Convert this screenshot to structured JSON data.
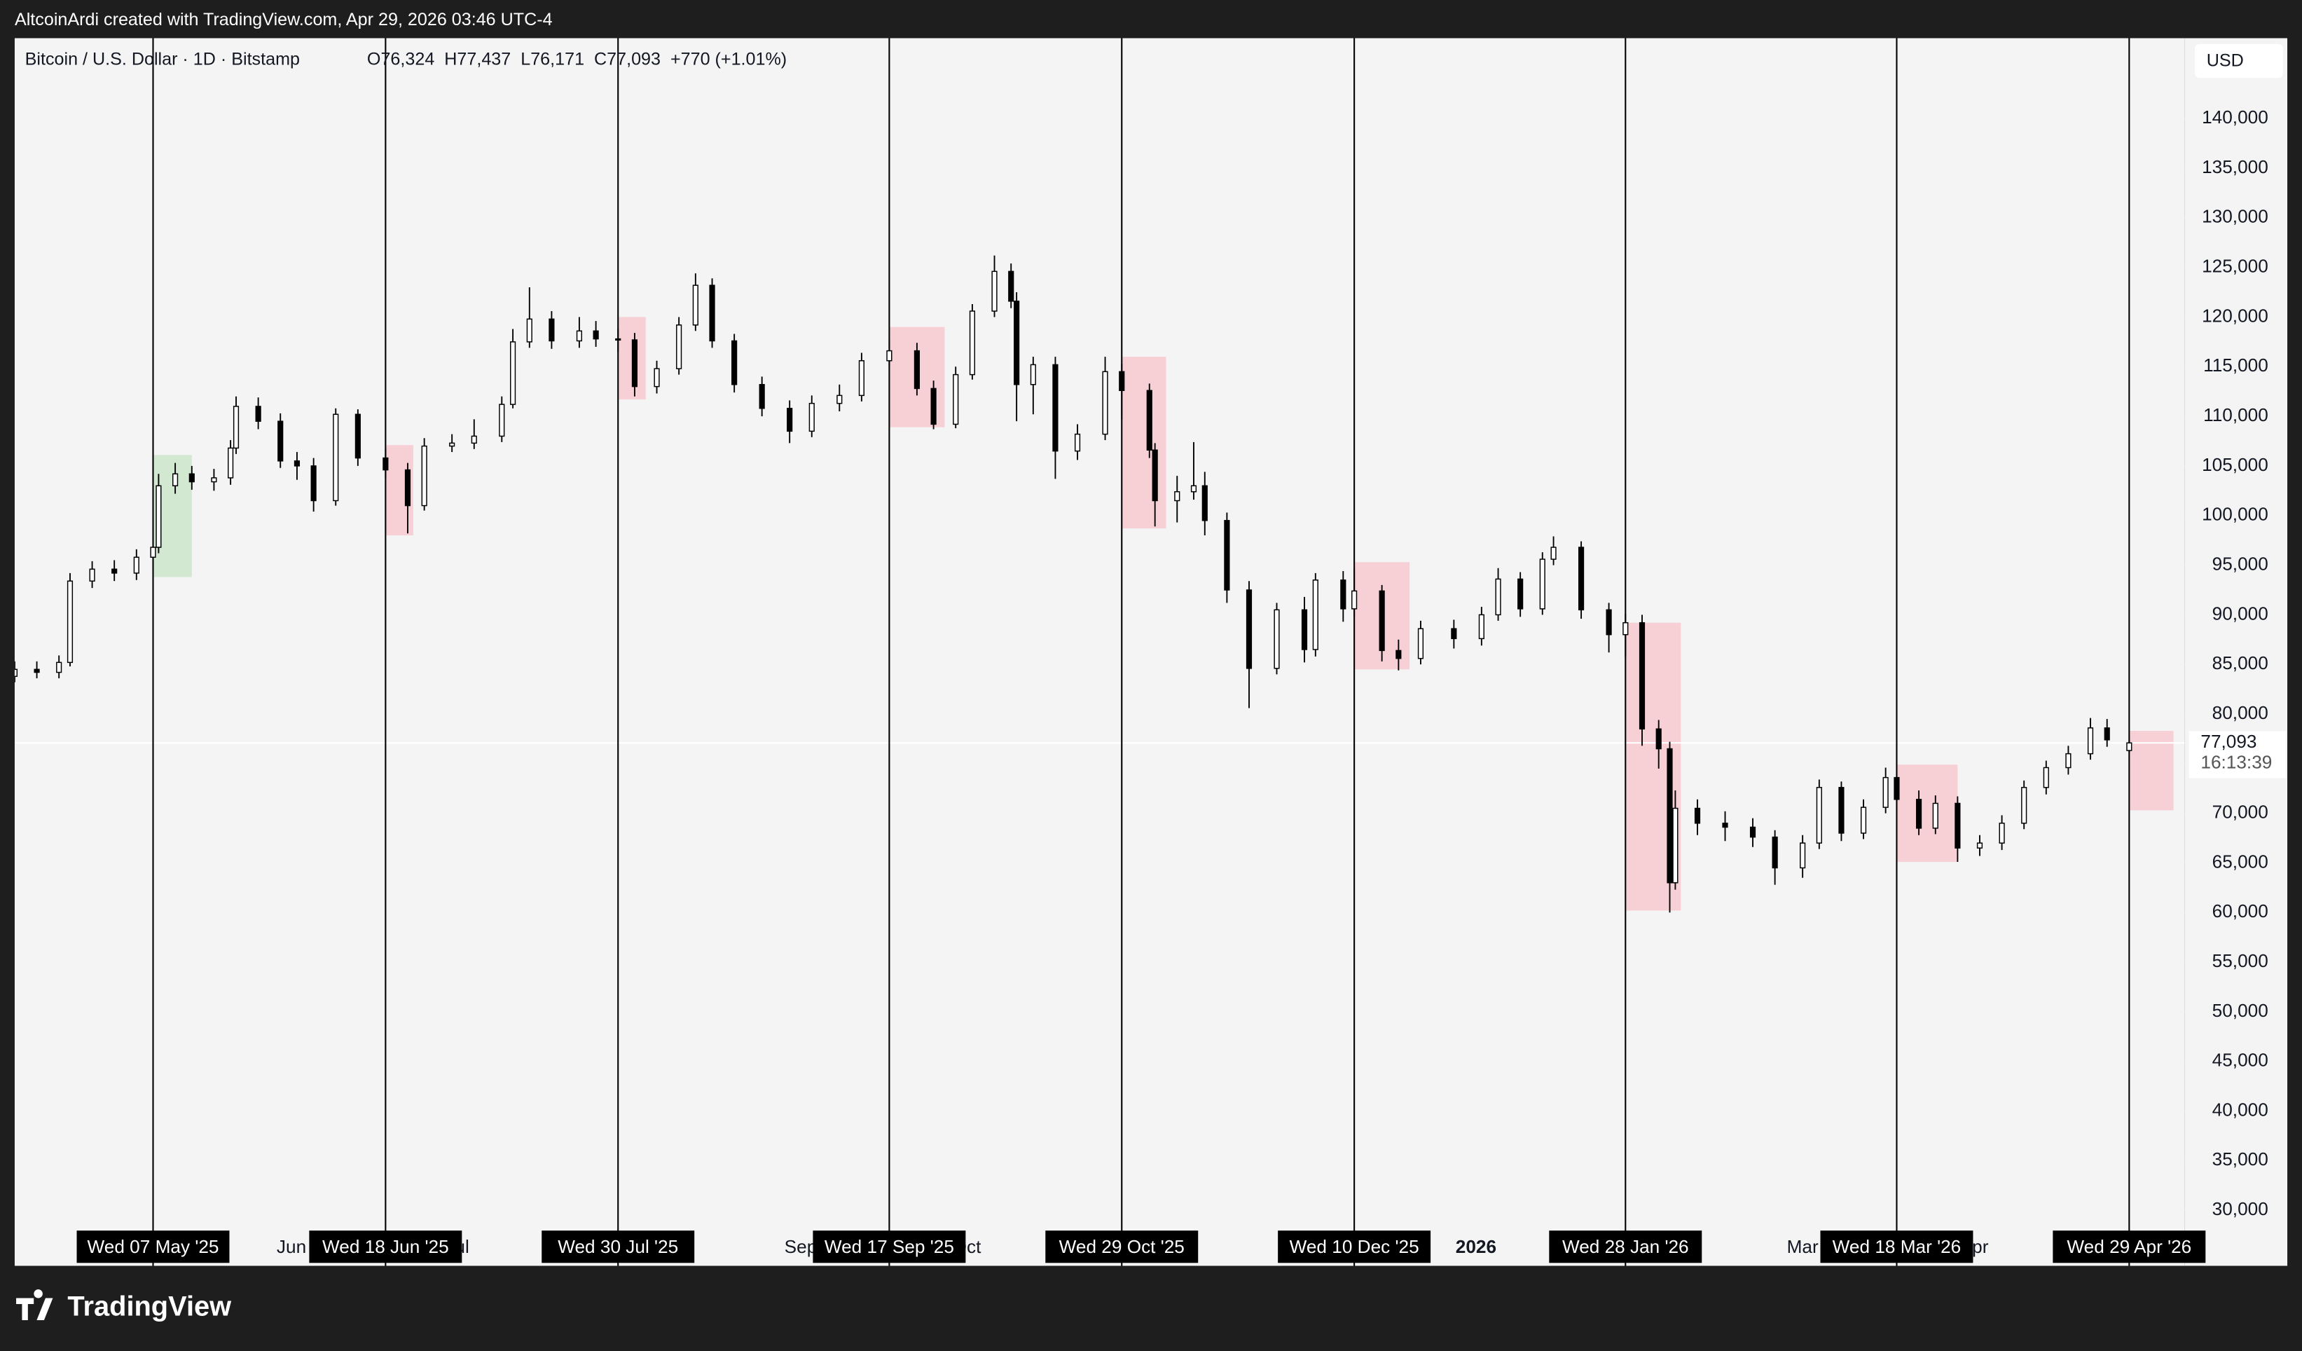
{
  "header": {
    "attribution": "AltcoinArdi created with TradingView.com, Apr 29, 2026 03:46 UTC-4"
  },
  "footer": {
    "brand": "TradingView"
  },
  "chart_data": {
    "type": "candlestick",
    "title": "Bitcoin / U.S. Dollar · 1D · Bitstamp",
    "legend_values": "O76,324  H77,437  L76,171  C77,093  +770 (+1.01%)",
    "currency": "USD",
    "up_color": "#ffffff",
    "down_color": "#000000",
    "wick_color": "#000000",
    "xlim": [
      "2025-04-12",
      "2026-05-09"
    ],
    "ylim": [
      24400,
      148100
    ],
    "yticks": [
      {
        "value": 30000,
        "label": "30,000"
      },
      {
        "value": 35000,
        "label": "35,000"
      },
      {
        "value": 40000,
        "label": "40,000"
      },
      {
        "value": 45000,
        "label": "45,000"
      },
      {
        "value": 50000,
        "label": "50,000"
      },
      {
        "value": 55000,
        "label": "55,000"
      },
      {
        "value": 60000,
        "label": "60,000"
      },
      {
        "value": 65000,
        "label": "65,000"
      },
      {
        "value": 70000,
        "label": "70,000"
      },
      {
        "value": 75000,
        "label": "75,000"
      },
      {
        "value": 80000,
        "label": "80,000"
      },
      {
        "value": 85000,
        "label": "85,000"
      },
      {
        "value": 90000,
        "label": "90,000"
      },
      {
        "value": 95000,
        "label": "95,000"
      },
      {
        "value": 100000,
        "label": "100,000"
      },
      {
        "value": 105000,
        "label": "105,000"
      },
      {
        "value": 110000,
        "label": "110,000"
      },
      {
        "value": 115000,
        "label": "115,000"
      },
      {
        "value": 120000,
        "label": "120,000"
      },
      {
        "value": 125000,
        "label": "125,000"
      },
      {
        "value": 130000,
        "label": "130,000"
      },
      {
        "value": 135000,
        "label": "135,000"
      },
      {
        "value": 140000,
        "label": "140,000"
      }
    ],
    "xticks": [
      {
        "value": "2025-06-01",
        "label": "Jun"
      },
      {
        "value": "2025-07-01",
        "label": "Jul"
      },
      {
        "value": "2025-09-01",
        "label": "Sep"
      },
      {
        "value": "2025-10-01",
        "label": "Oct"
      },
      {
        "value": "2026-01-01",
        "label": "2026"
      },
      {
        "value": "2026-03-01",
        "label": "Mar"
      },
      {
        "value": "2026-04-01",
        "label": "Apr"
      }
    ],
    "event_lines": [
      {
        "value": "2025-05-07",
        "label": "Wed 07 May '25"
      },
      {
        "value": "2025-06-18",
        "label": "Wed 18 Jun '25"
      },
      {
        "value": "2025-07-30",
        "label": "Wed 30 Jul '25"
      },
      {
        "value": "2025-09-17",
        "label": "Wed 17 Sep '25"
      },
      {
        "value": "2025-10-29",
        "label": "Wed 29 Oct '25"
      },
      {
        "value": "2025-12-10",
        "label": "Wed 10 Dec '25"
      },
      {
        "value": "2026-01-28",
        "label": "Wed 28 Jan '26"
      },
      {
        "value": "2026-03-18",
        "label": "Wed 18 Mar '26"
      },
      {
        "value": "2026-04-29",
        "label": "Wed 29 Apr '26"
      }
    ],
    "highlights": [
      {
        "start": "2025-05-07",
        "end": "2025-05-14",
        "low": 93800,
        "high": 106100,
        "color": "#d2e8d0"
      },
      {
        "start": "2025-06-18",
        "end": "2025-06-23",
        "low": 98000,
        "high": 107100,
        "color": "#f6d0d5"
      },
      {
        "start": "2025-07-30",
        "end": "2025-08-04",
        "low": 111700,
        "high": 120000,
        "color": "#f6d0d5"
      },
      {
        "start": "2025-09-17",
        "end": "2025-09-27",
        "low": 108900,
        "high": 119000,
        "color": "#f6d0d5"
      },
      {
        "start": "2025-10-29",
        "end": "2025-11-06",
        "low": 98700,
        "high": 116000,
        "color": "#f6d0d5"
      },
      {
        "start": "2025-12-10",
        "end": "2025-12-20",
        "low": 84500,
        "high": 95300,
        "color": "#f6d0d5"
      },
      {
        "start": "2026-01-28",
        "end": "2026-02-07",
        "low": 60200,
        "high": 89200,
        "color": "#f6d0d5"
      },
      {
        "start": "2026-03-18",
        "end": "2026-03-29",
        "low": 65100,
        "high": 74900,
        "color": "#f6d0d5"
      },
      {
        "start": "2026-04-29",
        "end": "2026-05-07",
        "low": 70300,
        "high": 78300,
        "color": "#f6d0d5"
      }
    ],
    "last_price": {
      "value": 77093,
      "label": "77,093"
    },
    "countdown": "16:13:39",
    "x": [
      "2025-04-12",
      "2025-04-16",
      "2025-04-20",
      "2025-04-22",
      "2025-04-26",
      "2025-04-30",
      "2025-05-04",
      "2025-05-07",
      "2025-05-08",
      "2025-05-11",
      "2025-05-14",
      "2025-05-18",
      "2025-05-21",
      "2025-05-22",
      "2025-05-26",
      "2025-05-30",
      "2025-06-02",
      "2025-06-05",
      "2025-06-09",
      "2025-06-13",
      "2025-06-18",
      "2025-06-22",
      "2025-06-25",
      "2025-06-30",
      "2025-07-04",
      "2025-07-09",
      "2025-07-11",
      "2025-07-14",
      "2025-07-18",
      "2025-07-23",
      "2025-07-26",
      "2025-07-30",
      "2025-08-02",
      "2025-08-06",
      "2025-08-10",
      "2025-08-13",
      "2025-08-16",
      "2025-08-20",
      "2025-08-25",
      "2025-08-30",
      "2025-09-03",
      "2025-09-08",
      "2025-09-12",
      "2025-09-17",
      "2025-09-22",
      "2025-09-25",
      "2025-09-29",
      "2025-10-02",
      "2025-10-06",
      "2025-10-09",
      "2025-10-10",
      "2025-10-13",
      "2025-10-17",
      "2025-10-21",
      "2025-10-26",
      "2025-10-29",
      "2025-11-03",
      "2025-11-04",
      "2025-11-08",
      "2025-11-11",
      "2025-11-13",
      "2025-11-17",
      "2025-11-21",
      "2025-11-26",
      "2025-12-01",
      "2025-12-03",
      "2025-12-08",
      "2025-12-10",
      "2025-12-15",
      "2025-12-18",
      "2025-12-22",
      "2025-12-28",
      "2026-01-02",
      "2026-01-05",
      "2026-01-09",
      "2026-01-13",
      "2026-01-15",
      "2026-01-20",
      "2026-01-25",
      "2026-01-28",
      "2026-01-31",
      "2026-02-03",
      "2026-02-05",
      "2026-02-06",
      "2026-02-10",
      "2026-02-15",
      "2026-02-20",
      "2026-02-24",
      "2026-03-01",
      "2026-03-04",
      "2026-03-08",
      "2026-03-12",
      "2026-03-16",
      "2026-03-18",
      "2026-03-22",
      "2026-03-25",
      "2026-03-29",
      "2026-04-02",
      "2026-04-06",
      "2026-04-10",
      "2026-04-14",
      "2026-04-18",
      "2026-04-22",
      "2026-04-25",
      "2026-04-29"
    ],
    "open": [
      83800,
      84500,
      84200,
      85200,
      93400,
      94600,
      94200,
      95800,
      96800,
      103000,
      104200,
      103400,
      103800,
      106800,
      111000,
      109500,
      105500,
      105000,
      101500,
      110200,
      105800,
      104600,
      101000,
      107000,
      107300,
      108000,
      111200,
      117500,
      119800,
      117600,
      118600,
      117800,
      117700,
      113000,
      114800,
      119200,
      123200,
      117600,
      113200,
      110800,
      108500,
      111300,
      112100,
      115600,
      116600,
      112800,
      109200,
      114200,
      120600,
      124600,
      121600,
      113200,
      115200,
      106500,
      108200,
      114500,
      112600,
      106600,
      101500,
      102400,
      103000,
      99500,
      92500,
      84600,
      90500,
      86500,
      93500,
      90600,
      92400,
      86400,
      85600,
      88600,
      87600,
      90000,
      93600,
      90600,
      95600,
      96800,
      90500,
      88000,
      89200,
      78500,
      76500,
      63000,
      70500,
      69000,
      68600,
      67600,
      64500,
      67000,
      72600,
      68000,
      70600,
      73600,
      71400,
      68500,
      71000,
      66500,
      67000,
      69000,
      72600,
      74600,
      76000,
      78600,
      76324
    ],
    "high": [
      85300,
      85300,
      85900,
      94200,
      95400,
      95500,
      96600,
      97800,
      104200,
      105300,
      105000,
      104700,
      107600,
      112000,
      111900,
      110300,
      106400,
      105800,
      110800,
      110700,
      106700,
      105300,
      107800,
      108200,
      109700,
      112000,
      118800,
      123000,
      120600,
      120000,
      119600,
      118800,
      118400,
      115600,
      120000,
      124400,
      123900,
      118300,
      114000,
      111600,
      112100,
      113200,
      116400,
      117800,
      117400,
      113600,
      115000,
      121300,
      126200,
      125400,
      122500,
      116000,
      116000,
      109200,
      116000,
      115300,
      113300,
      107300,
      104000,
      107400,
      104400,
      100300,
      93400,
      91200,
      91800,
      94200,
      94400,
      94600,
      93000,
      87500,
      89400,
      89500,
      90800,
      94700,
      94300,
      96300,
      97900,
      97400,
      91200,
      90100,
      90000,
      79400,
      77200,
      72300,
      71400,
      70200,
      69500,
      68300,
      67800,
      73400,
      73200,
      71400,
      74600,
      74200,
      72300,
      71800,
      71700,
      67800,
      69800,
      73300,
      75300,
      76800,
      79600,
      79500,
      77437
    ],
    "low": [
      83200,
      83600,
      83600,
      84800,
      92700,
      93400,
      93500,
      95000,
      96200,
      102200,
      102600,
      102500,
      103100,
      106200,
      108700,
      104800,
      103600,
      100400,
      101000,
      105000,
      103800,
      98200,
      100500,
      106400,
      106700,
      107400,
      110800,
      116900,
      116800,
      116900,
      117000,
      116500,
      112000,
      112300,
      114200,
      118600,
      116900,
      112400,
      110000,
      107300,
      107900,
      110500,
      111500,
      114900,
      112100,
      108700,
      108800,
      113700,
      120000,
      120900,
      109500,
      110200,
      103700,
      105600,
      107600,
      109700,
      105800,
      98900,
      99300,
      101600,
      98000,
      91200,
      80600,
      84000,
      85200,
      85800,
      89300,
      89800,
      85300,
      84400,
      85000,
      86600,
      86900,
      89400,
      89800,
      90000,
      95000,
      89600,
      86200,
      85800,
      76800,
      74500,
      60000,
      62300,
      67800,
      67200,
      66600,
      62800,
      63500,
      66400,
      67200,
      67400,
      70000,
      70600,
      67800,
      67900,
      65100,
      65700,
      66300,
      68400,
      71900,
      73900,
      75400,
      76700,
      76171
    ],
    "close": [
      84500,
      84200,
      85200,
      93400,
      94600,
      94200,
      95800,
      96800,
      103000,
      104200,
      103400,
      103800,
      106800,
      111000,
      109500,
      105500,
      105000,
      101500,
      110200,
      105800,
      104600,
      101000,
      107000,
      107300,
      108000,
      111200,
      117500,
      119800,
      117600,
      118600,
      117800,
      117700,
      113000,
      114800,
      119200,
      123200,
      117600,
      113200,
      110800,
      108500,
      111300,
      112100,
      115600,
      116600,
      112800,
      109200,
      114200,
      120600,
      124600,
      121600,
      113200,
      115200,
      106500,
      108200,
      114500,
      112600,
      106600,
      101500,
      102400,
      103000,
      99500,
      92500,
      84600,
      90500,
      86500,
      93500,
      90600,
      92400,
      86400,
      85600,
      88600,
      87600,
      90000,
      93600,
      90600,
      95600,
      96800,
      90500,
      88000,
      89200,
      78500,
      76500,
      63000,
      70500,
      69000,
      68600,
      67600,
      64500,
      67000,
      72600,
      68000,
      70600,
      73600,
      71400,
      68500,
      71000,
      66500,
      67000,
      69000,
      72600,
      74600,
      76000,
      78600,
      77400,
      77093
    ]
  }
}
